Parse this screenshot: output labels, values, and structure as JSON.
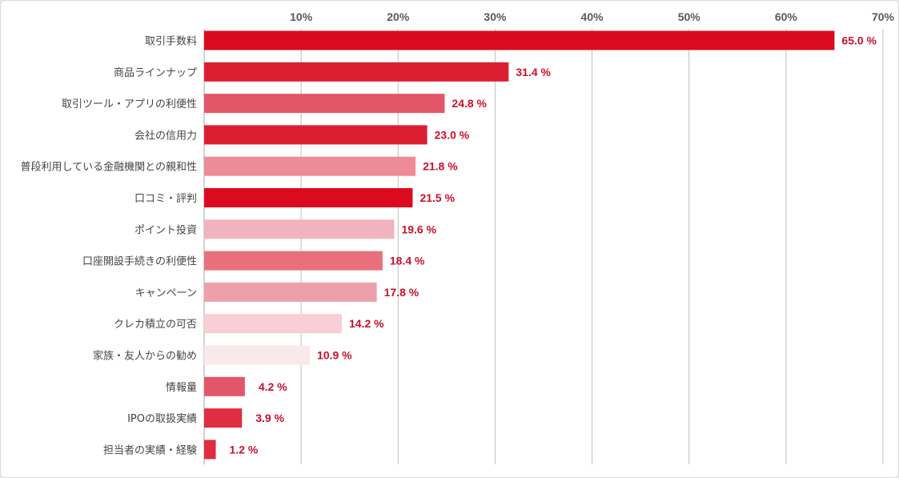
{
  "chart_data": {
    "type": "bar",
    "orientation": "horizontal",
    "categories": [
      "取引手数料",
      "商品ラインナップ",
      "取引ツール・アプリの利便性",
      "会社の信用力",
      "普段利用している金融機関との親和性",
      "口コミ・評判",
      "ポイント投資",
      "口座開設手続きの利便性",
      "キャンペーン",
      "クレカ積立の可否",
      "家族・友人からの勧め",
      "情報量",
      "IPOの取扱実績",
      "担当者の実績・経験"
    ],
    "values": [
      65.0,
      31.4,
      24.8,
      23.0,
      21.8,
      21.5,
      19.6,
      18.4,
      17.8,
      14.2,
      10.9,
      4.2,
      3.9,
      1.2
    ],
    "value_labels": [
      "65.0 %",
      "31.4 %",
      "24.8 %",
      "23.0 %",
      "21.8 %",
      "21.5 %",
      "19.6 %",
      "18.4 %",
      "17.8 %",
      "14.2 %",
      "10.9 %",
      "4.2 %",
      "3.9 %",
      "1.2 %"
    ],
    "bar_colors": [
      "#dc0a1e",
      "#dc1e32",
      "#e3566a",
      "#dc1e32",
      "#ee8c96",
      "#dc0a1e",
      "#f0b4bc",
      "#e8707d",
      "#eea0aa",
      "#f7cfd5",
      "#fbe8eb",
      "#e3566a",
      "#e02d3f",
      "#e02d3f"
    ],
    "xlim": [
      0,
      70
    ],
    "x_ticks": [
      10,
      20,
      30,
      40,
      50,
      60,
      70
    ],
    "x_tick_labels": [
      "10%",
      "20%",
      "30%",
      "40%",
      "50%",
      "60%",
      "70%"
    ],
    "grid": true,
    "axis_position": "top",
    "title": "",
    "xlabel": "",
    "ylabel": ""
  }
}
